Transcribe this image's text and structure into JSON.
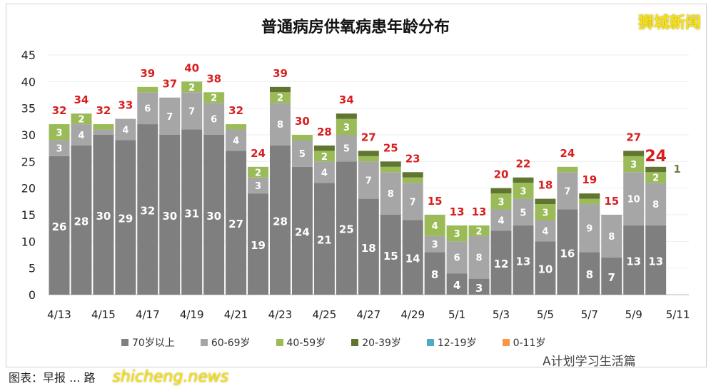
{
  "brand": "狮城新闻",
  "source": "图表：早报 ... 路",
  "site": "shicheng.news",
  "watermark": "A计划学习生活篇",
  "chart_data": {
    "type": "bar",
    "stacked": true,
    "title": "普通病房供氧病患年龄分布",
    "ylim": [
      0,
      45
    ],
    "yticks": [
      0,
      5,
      10,
      15,
      20,
      25,
      30,
      35,
      40,
      45
    ],
    "categories": [
      "4/13",
      "4/14",
      "4/15",
      "4/16",
      "4/17",
      "4/18",
      "4/19",
      "4/20",
      "4/21",
      "4/22",
      "4/23",
      "4/24",
      "4/25",
      "4/26",
      "4/27",
      "4/28",
      "4/29",
      "4/30",
      "5/1",
      "5/2",
      "5/3",
      "5/4",
      "5/5",
      "5/6",
      "5/7",
      "5/8",
      "5/9",
      "5/10",
      "5/11"
    ],
    "xtick_labels": [
      "4/13",
      "4/15",
      "4/17",
      "4/19",
      "4/21",
      "4/23",
      "4/25",
      "4/27",
      "4/29",
      "5/1",
      "5/3",
      "5/5",
      "5/7",
      "5/9",
      "5/11"
    ],
    "series": [
      {
        "name": "70岁以上",
        "color": "#7f7f7f",
        "values": [
          26,
          28,
          30,
          29,
          32,
          30,
          31,
          30,
          27,
          19,
          28,
          24,
          21,
          25,
          18,
          15,
          14,
          8,
          4,
          3,
          12,
          13,
          10,
          16,
          8,
          7,
          13,
          13,
          0
        ]
      },
      {
        "name": "60-69岁",
        "color": "#a6a6a6",
        "values": [
          3,
          4,
          1,
          4,
          6,
          7,
          7,
          6,
          4,
          3,
          8,
          5,
          4,
          5,
          7,
          8,
          7,
          3,
          6,
          8,
          4,
          5,
          4,
          7,
          9,
          8,
          10,
          8,
          0
        ]
      },
      {
        "name": "40-59岁",
        "color": "#9bbb59",
        "values": [
          3,
          2,
          1,
          0,
          1,
          0,
          2,
          2,
          1,
          2,
          2,
          1,
          2,
          3,
          1,
          1,
          1,
          4,
          3,
          2,
          3,
          3,
          3,
          1,
          1,
          0,
          3,
          2,
          0
        ]
      },
      {
        "name": "20-39岁",
        "color": "#5f7530",
        "values": [
          0,
          0,
          0,
          0,
          0,
          0,
          0,
          0,
          0,
          0,
          1,
          0,
          1,
          1,
          1,
          1,
          1,
          0,
          0,
          0,
          1,
          1,
          1,
          0,
          1,
          0,
          1,
          1,
          0
        ]
      },
      {
        "name": "12-19岁",
        "color": "#4bacc6",
        "values": [
          0,
          0,
          0,
          0,
          0,
          0,
          0,
          0,
          0,
          0,
          0,
          0,
          0,
          0,
          0,
          0,
          0,
          0,
          0,
          0,
          0,
          0,
          0,
          0,
          0,
          0,
          0,
          0,
          0
        ]
      },
      {
        "name": "0-11岁",
        "color": "#f79646",
        "values": [
          0,
          0,
          0,
          0,
          0,
          0,
          0,
          0,
          0,
          0,
          0,
          0,
          0,
          0,
          0,
          0,
          0,
          0,
          0,
          0,
          0,
          0,
          0,
          0,
          0,
          0,
          0,
          0,
          0
        ]
      }
    ],
    "totals": [
      32,
      34,
      32,
      33,
      39,
      37,
      40,
      38,
      32,
      24,
      39,
      30,
      28,
      34,
      27,
      25,
      23,
      15,
      13,
      13,
      20,
      22,
      18,
      24,
      19,
      15,
      27,
      24,
      null
    ],
    "legend": "bottom"
  }
}
